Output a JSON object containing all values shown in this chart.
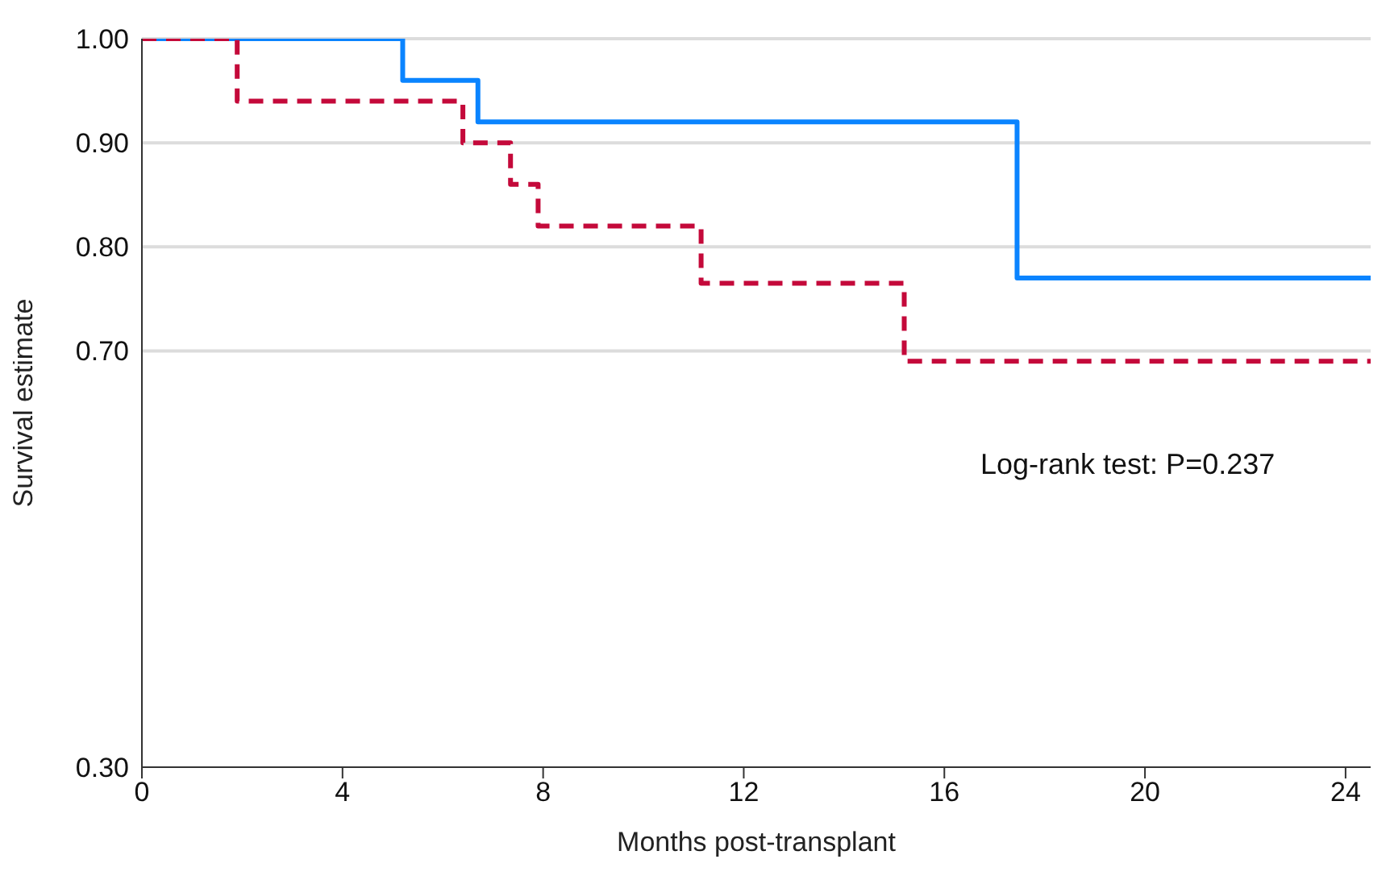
{
  "chart_data": {
    "type": "step",
    "xlabel": "Months post-transplant",
    "ylabel": "Survival estimate",
    "xlim": [
      0,
      24.5
    ],
    "xticks": [
      0,
      4,
      8,
      12,
      16,
      20,
      24
    ],
    "ylim": [
      0.3,
      1.0
    ],
    "yticks": [
      {
        "value": 0.3,
        "label": "0.30"
      },
      {
        "value": 0.7,
        "label": "0.70"
      },
      {
        "value": 0.8,
        "label": "0.80"
      },
      {
        "value": 0.9,
        "label": "0.90"
      },
      {
        "value": 1.0,
        "label": "1.00"
      }
    ],
    "grid": "y",
    "marker": "none",
    "annotations": [
      "Log-rank test: P=0.237"
    ],
    "series": [
      {
        "color": "#0a84ff",
        "line_style": "solid",
        "x": [
          0,
          5.2,
          6.7,
          17.45,
          24.5
        ],
        "values": [
          1.0,
          0.96,
          0.92,
          0.77,
          0.77
        ]
      },
      {
        "color": "#c4093a",
        "line_style": "dashed",
        "x": [
          0,
          1.9,
          6.4,
          7.35,
          7.9,
          11.15,
          15.2,
          24.5
        ],
        "values": [
          1.0,
          0.94,
          0.9,
          0.86,
          0.82,
          0.765,
          0.69,
          0.69
        ]
      }
    ]
  }
}
